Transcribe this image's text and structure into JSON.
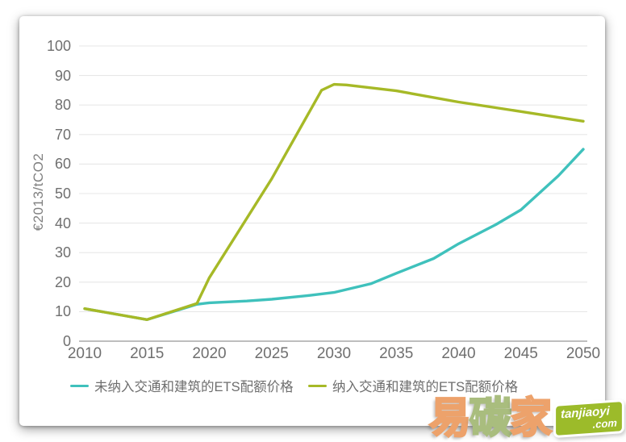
{
  "page": {
    "background": "#ffffff"
  },
  "chart_data": {
    "type": "line",
    "title": "",
    "xlabel": "",
    "ylabel": "€2013/tCO2",
    "xlim": [
      2010,
      2050
    ],
    "ylim": [
      0,
      100
    ],
    "x_ticks": [
      2010,
      2015,
      2020,
      2025,
      2030,
      2035,
      2040,
      2045,
      2050
    ],
    "y_ticks": [
      0,
      10,
      20,
      30,
      40,
      50,
      60,
      70,
      80,
      90,
      100
    ],
    "grid": "horizontal",
    "grid_color": "#e7e7e7",
    "axis_line_color": "#a8a8a8",
    "tick_label_color": "#6f6f6f",
    "legend_position": "bottom",
    "series": [
      {
        "name": "未纳入交通和建筑的ETS配额价格",
        "color": "#3fc1bc",
        "points": [
          [
            2010,
            11
          ],
          [
            2015,
            7.3
          ],
          [
            2019,
            12.5
          ],
          [
            2020,
            13
          ],
          [
            2023,
            13.6
          ],
          [
            2025,
            14.2
          ],
          [
            2028,
            15.5
          ],
          [
            2030,
            16.5
          ],
          [
            2033,
            19.5
          ],
          [
            2035,
            23
          ],
          [
            2038,
            28
          ],
          [
            2040,
            33
          ],
          [
            2043,
            39.5
          ],
          [
            2045,
            44.5
          ],
          [
            2048,
            56
          ],
          [
            2050,
            65
          ]
        ]
      },
      {
        "name": "纳入交通和建筑的ETS配额价格",
        "color": "#a6b927",
        "points": [
          [
            2010,
            11
          ],
          [
            2015,
            7.3
          ],
          [
            2019,
            12.8
          ],
          [
            2020,
            21.5
          ],
          [
            2025,
            55
          ],
          [
            2029,
            85
          ],
          [
            2030,
            87
          ],
          [
            2031,
            86.8
          ],
          [
            2035,
            84.8
          ],
          [
            2040,
            81
          ],
          [
            2045,
            77.8
          ],
          [
            2050,
            74.5
          ]
        ]
      }
    ]
  },
  "watermark": {
    "chars": [
      "易",
      "碳",
      "家"
    ],
    "char_colors": [
      "#eda26b",
      "#a9bd7e",
      "#eda26b"
    ],
    "badge_top": "tanjiaoyi",
    "badge_bottom": ".com",
    "badge_color": "#9cbb2a"
  }
}
